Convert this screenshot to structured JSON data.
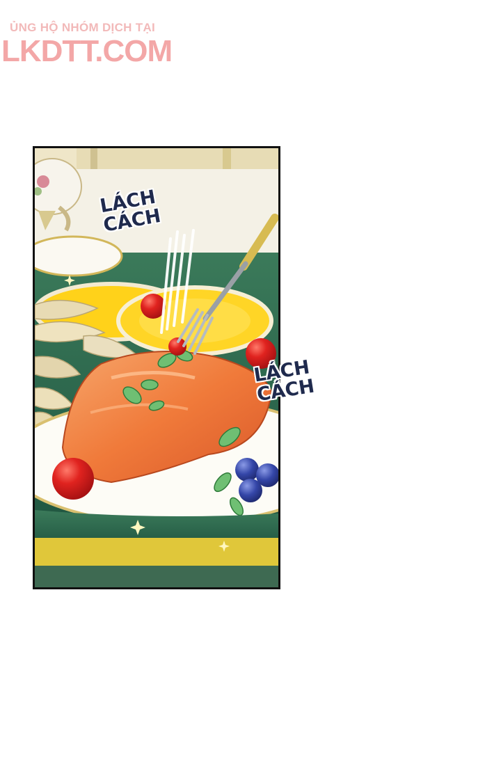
{
  "watermark": {
    "tagline": "ỦNG HỘ NHÓM DỊCH TẠI",
    "site": "LKDTT.COM"
  },
  "sound_effects": [
    {
      "line1": "LÁCH",
      "line2": "CÁCH"
    },
    {
      "line1": "LÁCH",
      "line2": "CÁCH"
    }
  ],
  "colors": {
    "salmon": "#f07a3a",
    "lemon": "#ffd21a",
    "tomato": "#d8171d",
    "blueberry": "#2f3f9e",
    "plate_rim_green": "#2c6b55",
    "table_gold": "#e0c73a",
    "sfx_text": "#1f2a4d",
    "watermark": "#f3a7a7"
  }
}
